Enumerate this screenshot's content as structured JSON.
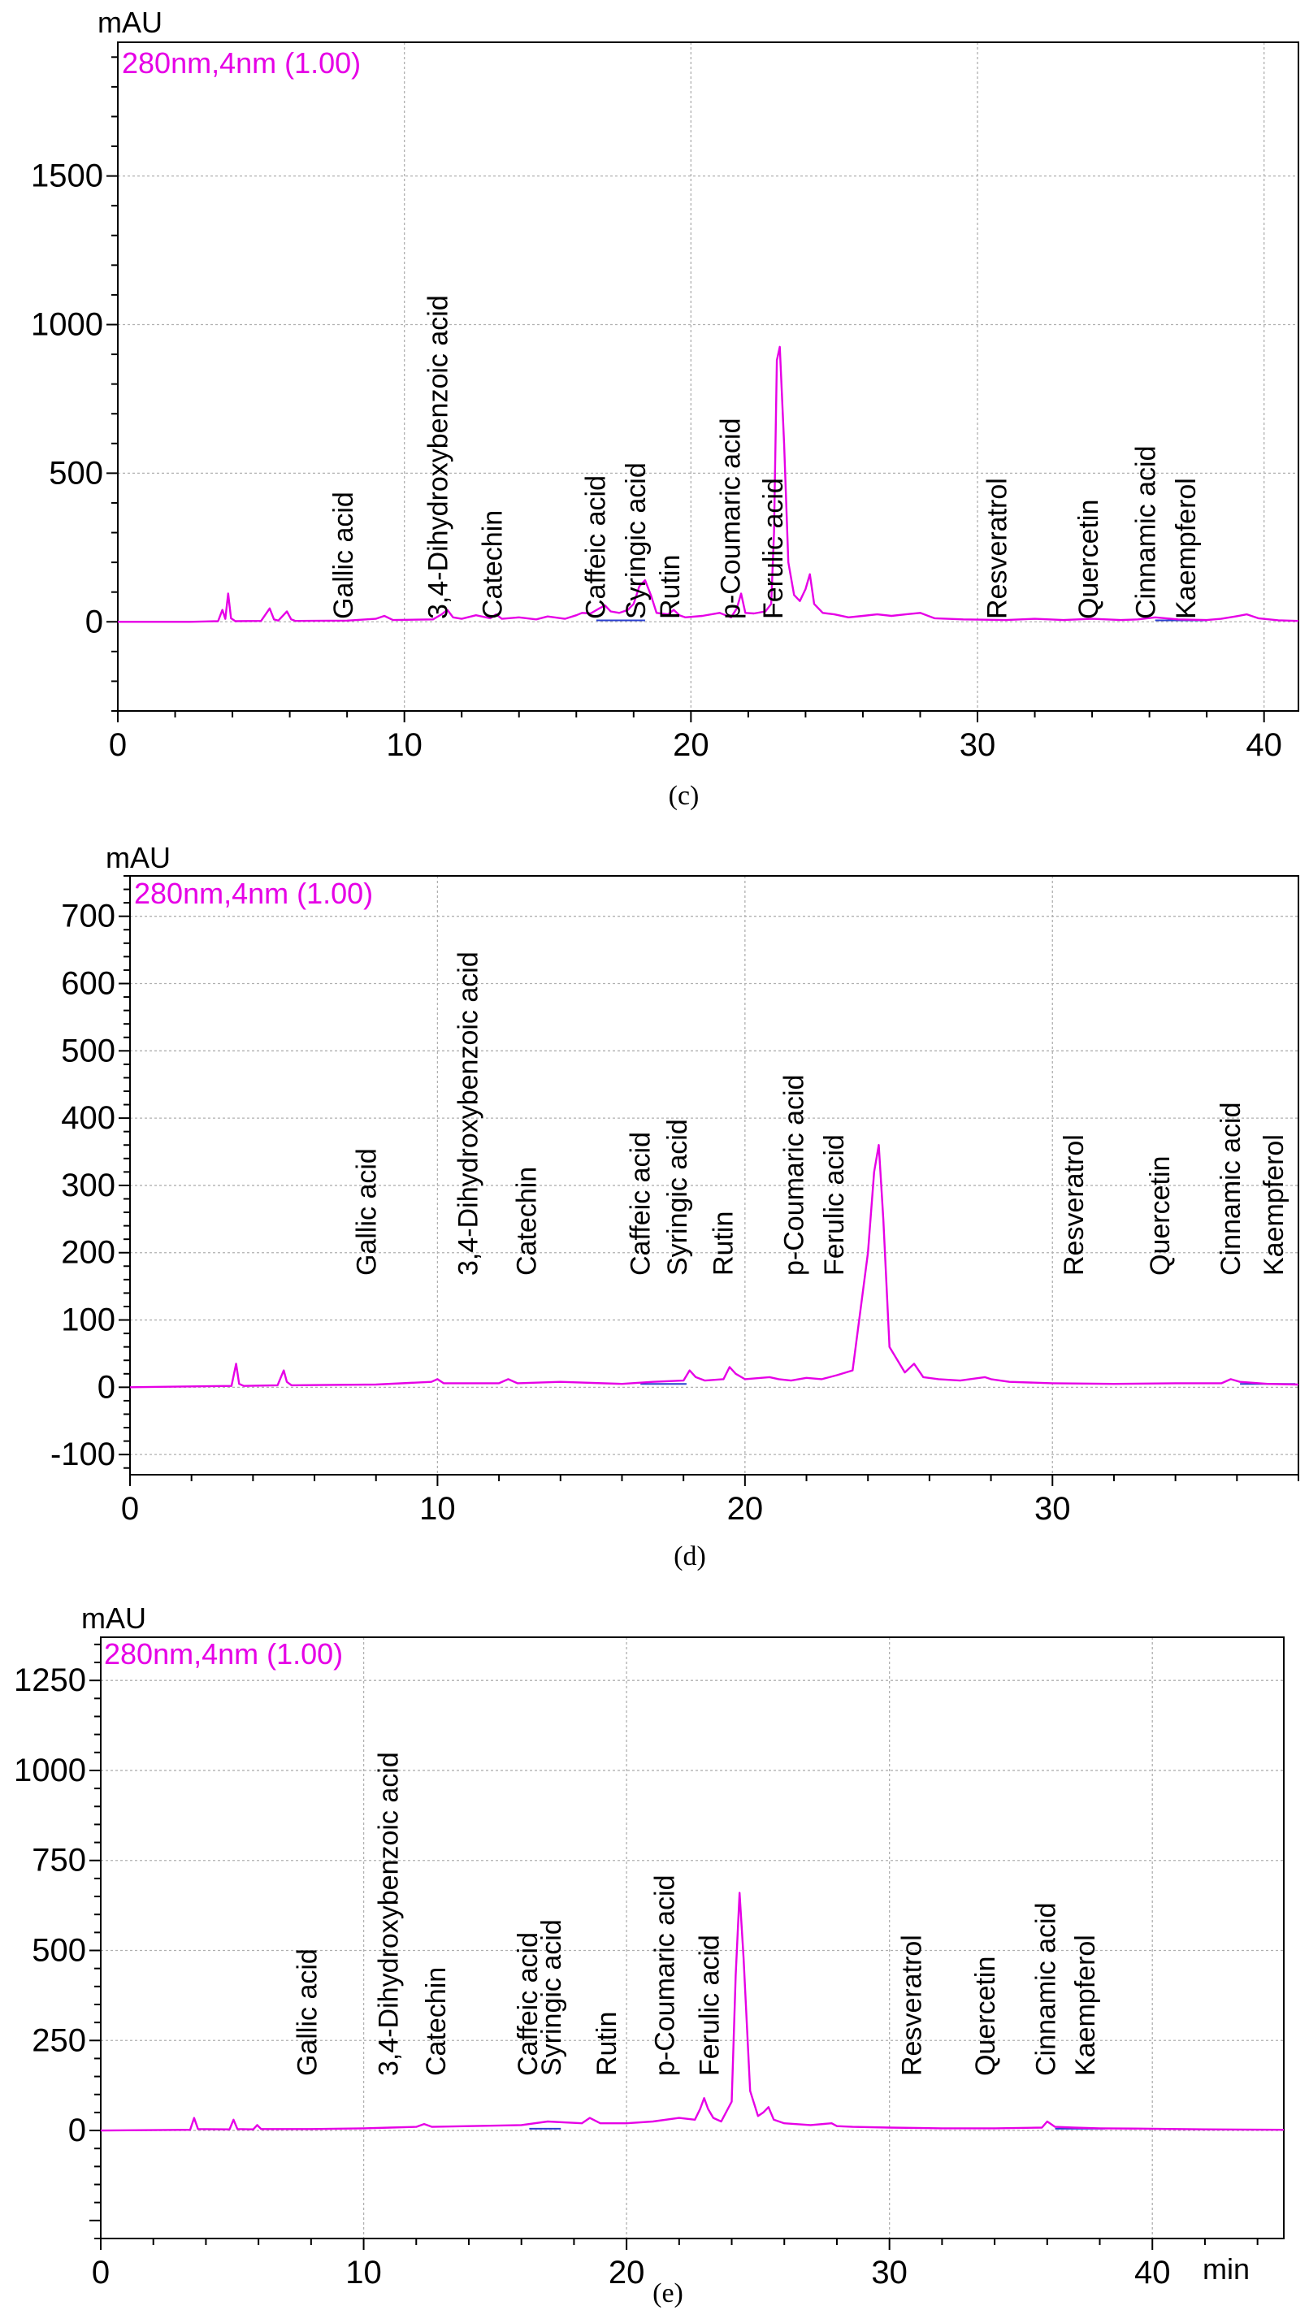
{
  "colors": {
    "trace": "#e600e6",
    "integration": "#2a3fd0"
  },
  "chart_data": [
    {
      "type": "line",
      "caption": "(c)",
      "legend": "280nm,4nm (1.00)",
      "ylabel": "mAU",
      "xlabel": "",
      "xlim": [
        0,
        41.2
      ],
      "ylim": [
        -300,
        1950
      ],
      "xticks": [
        0,
        10,
        20,
        30,
        40
      ],
      "yticks": [
        0,
        500,
        1000,
        1500
      ],
      "grid": true,
      "peak_labels": [
        {
          "name": "Gallic acid",
          "rt": 8.2
        },
        {
          "name": "3,4-Dihydroxybenzoic acid",
          "rt": 11.5
        },
        {
          "name": "Catechin",
          "rt": 13.4
        },
        {
          "name": "Caffeic acid",
          "rt": 17.0
        },
        {
          "name": "Syringic acid",
          "rt": 18.4
        },
        {
          "name": "Rutin",
          "rt": 19.6
        },
        {
          "name": "p-Coumaric acid",
          "rt": 21.7
        },
        {
          "name": "Ferulic acid",
          "rt": 23.2
        },
        {
          "name": "Resveratrol",
          "rt": 31.0
        },
        {
          "name": "Quercetin",
          "rt": 34.2
        },
        {
          "name": "Cinnamic acid",
          "rt": 36.2
        },
        {
          "name": "Kaempferol",
          "rt": 37.6
        }
      ],
      "series": [
        {
          "name": "280nm,4nm (1.00)",
          "x": [
            0,
            2.5,
            3.5,
            3.65,
            3.75,
            3.85,
            3.95,
            4.1,
            5.0,
            5.3,
            5.45,
            5.6,
            5.9,
            6.05,
            6.2,
            8.0,
            9.0,
            9.3,
            9.6,
            11.0,
            11.3,
            11.5,
            11.7,
            12.0,
            12.5,
            13.0,
            13.2,
            13.4,
            14.0,
            14.6,
            15.0,
            15.6,
            16.0,
            16.2,
            16.5,
            16.8,
            17.0,
            17.2,
            17.5,
            17.8,
            18.0,
            18.2,
            18.4,
            18.6,
            18.8,
            19.2,
            19.4,
            19.6,
            19.8,
            20.4,
            21.0,
            21.4,
            21.6,
            21.75,
            21.9,
            22.2,
            22.6,
            22.8,
            22.9,
            23.0,
            23.1,
            23.25,
            23.4,
            23.6,
            23.8,
            24.0,
            24.15,
            24.3,
            24.6,
            25.0,
            25.5,
            26.0,
            26.5,
            27.0,
            27.5,
            28.0,
            28.5,
            29.5,
            31.0,
            32.0,
            33.0,
            34.0,
            35.0,
            35.6,
            36.2,
            37.0,
            38.0,
            38.5,
            39.0,
            39.4,
            39.8,
            40.5,
            41.2
          ],
          "y": [
            0,
            0,
            2,
            40,
            10,
            95,
            12,
            2,
            3,
            45,
            8,
            4,
            35,
            8,
            3,
            4,
            10,
            20,
            6,
            8,
            25,
            40,
            15,
            10,
            22,
            12,
            25,
            10,
            15,
            8,
            18,
            10,
            22,
            30,
            28,
            45,
            55,
            35,
            30,
            40,
            60,
            120,
            140,
            90,
            30,
            25,
            40,
            22,
            15,
            20,
            30,
            15,
            45,
            95,
            30,
            28,
            35,
            60,
            300,
            880,
            925,
            600,
            200,
            90,
            70,
            110,
            160,
            60,
            30,
            25,
            15,
            20,
            25,
            20,
            25,
            30,
            12,
            8,
            6,
            10,
            6,
            10,
            6,
            8,
            15,
            8,
            6,
            10,
            18,
            25,
            12,
            5,
            3
          ]
        }
      ]
    },
    {
      "type": "line",
      "caption": "(d)",
      "legend": "280nm,4nm (1.00)",
      "ylabel": "mAU",
      "xlabel": "",
      "xlim": [
        0,
        38
      ],
      "ylim": [
        -130,
        760
      ],
      "xticks": [
        0,
        10,
        20,
        30
      ],
      "yticks": [
        -100,
        0,
        100,
        200,
        300,
        400,
        500,
        600,
        700
      ],
      "grid": true,
      "peak_labels": [
        {
          "name": "Gallic acid",
          "rt": 8.0
        },
        {
          "name": "3,4-Dihydroxybenzoic acid",
          "rt": 11.3
        },
        {
          "name": "Catechin",
          "rt": 13.2
        },
        {
          "name": "Caffeic acid",
          "rt": 16.9
        },
        {
          "name": "Syringic acid",
          "rt": 18.1
        },
        {
          "name": "Rutin",
          "rt": 19.6
        },
        {
          "name": "p-Coumaric acid",
          "rt": 21.9
        },
        {
          "name": "Ferulic acid",
          "rt": 23.2
        },
        {
          "name": "Resveratrol",
          "rt": 31.0
        },
        {
          "name": "Quercetin",
          "rt": 33.8
        },
        {
          "name": "Cinnamic acid",
          "rt": 36.1
        },
        {
          "name": "Kaempferol",
          "rt": 37.5
        }
      ],
      "series": [
        {
          "name": "280nm,4nm (1.00)",
          "x": [
            0,
            3.3,
            3.45,
            3.55,
            3.7,
            4.8,
            5.0,
            5.1,
            5.25,
            8.0,
            9.8,
            10.0,
            10.2,
            12.0,
            12.3,
            12.6,
            14.0,
            16.0,
            17.0,
            18.0,
            18.2,
            18.4,
            18.7,
            19.3,
            19.5,
            19.7,
            20.0,
            20.8,
            21.1,
            21.5,
            22.0,
            22.5,
            23.0,
            23.5,
            24.0,
            24.2,
            24.35,
            24.5,
            24.7,
            25.2,
            25.5,
            25.8,
            26.3,
            27.0,
            27.8,
            28.0,
            28.6,
            30.0,
            32.0,
            34.0,
            35.5,
            35.8,
            36.1,
            37.0,
            38.0
          ],
          "y": [
            0,
            2,
            35,
            5,
            2,
            3,
            25,
            8,
            3,
            4,
            8,
            12,
            6,
            6,
            12,
            6,
            8,
            5,
            8,
            10,
            25,
            15,
            10,
            12,
            30,
            20,
            12,
            15,
            12,
            10,
            14,
            12,
            18,
            25,
            200,
            320,
            360,
            250,
            60,
            22,
            35,
            15,
            12,
            10,
            15,
            12,
            8,
            6,
            5,
            6,
            6,
            12,
            8,
            5,
            4
          ]
        }
      ]
    },
    {
      "type": "line",
      "caption": "(e)",
      "legend": "280nm,4nm (1.00)",
      "ylabel": "mAU",
      "xlabel": "min",
      "xlim": [
        0,
        45
      ],
      "ylim": [
        -300,
        1370
      ],
      "xticks": [
        0,
        10,
        20,
        30,
        40
      ],
      "yticks": [
        0,
        250,
        500,
        750,
        1000,
        1250
      ],
      "grid": true,
      "peak_labels": [
        {
          "name": "Gallic acid",
          "rt": 8.2
        },
        {
          "name": "3,4-Dihydroxybenzoic acid",
          "rt": 11.3
        },
        {
          "name": "Catechin",
          "rt": 13.1
        },
        {
          "name": "Caffeic acid",
          "rt": 16.6
        },
        {
          "name": "Syringic acid",
          "rt": 17.5
        },
        {
          "name": "Rutin",
          "rt": 19.6
        },
        {
          "name": "p-Coumaric acid",
          "rt": 21.8
        },
        {
          "name": "Ferulic acid",
          "rt": 23.5
        },
        {
          "name": "Resveratrol",
          "rt": 31.2
        },
        {
          "name": "Quercetin",
          "rt": 34.0
        },
        {
          "name": "Cinnamic acid",
          "rt": 36.3
        },
        {
          "name": "Kaempferol",
          "rt": 37.8
        }
      ],
      "series": [
        {
          "name": "280nm,4nm (1.00)",
          "x": [
            0,
            3.4,
            3.55,
            3.7,
            4.9,
            5.05,
            5.2,
            5.8,
            5.95,
            6.1,
            8.0,
            10.0,
            11.0,
            12.0,
            12.3,
            12.6,
            14.0,
            16.0,
            17.0,
            18.3,
            18.6,
            19.0,
            20.0,
            21.0,
            22.0,
            22.6,
            22.8,
            22.95,
            23.1,
            23.3,
            23.6,
            24.0,
            24.15,
            24.3,
            24.45,
            24.7,
            25.0,
            25.2,
            25.4,
            25.6,
            26.0,
            27.0,
            27.8,
            28.0,
            28.6,
            30.0,
            32.0,
            34.0,
            35.8,
            36.0,
            36.3,
            37.0,
            38.0,
            40.0,
            42.0,
            45.0
          ],
          "y": [
            0,
            2,
            35,
            4,
            3,
            30,
            4,
            3,
            15,
            4,
            4,
            6,
            8,
            10,
            18,
            10,
            12,
            15,
            25,
            20,
            35,
            20,
            20,
            25,
            35,
            30,
            60,
            90,
            60,
            35,
            25,
            80,
            430,
            660,
            480,
            110,
            40,
            50,
            65,
            30,
            20,
            15,
            20,
            12,
            10,
            8,
            6,
            6,
            8,
            25,
            10,
            8,
            6,
            5,
            3,
            2
          ]
        }
      ]
    }
  ]
}
